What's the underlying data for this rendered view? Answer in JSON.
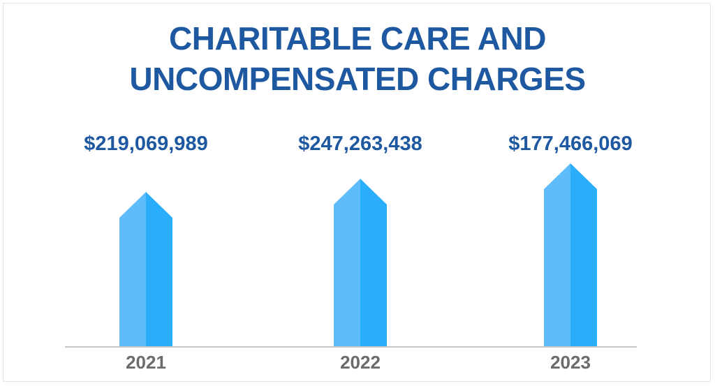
{
  "chart_data": {
    "type": "bar",
    "title_lines": [
      "CHARITABLE CARE AND",
      "UNCOMPENSATED CHARGES"
    ],
    "categories": [
      "2021",
      "2022",
      "2023"
    ],
    "value_labels": [
      "$219,069,989",
      "$247,263,438",
      "$177,466,069"
    ],
    "values": [
      219069989,
      247263438,
      177466069
    ],
    "xlabel": "",
    "ylabel": "",
    "grid": false,
    "legend": "none",
    "colors": {
      "bar_light": "#5ebcfb",
      "bar_dark": "#2aaefb",
      "title": "#1e58a0",
      "value_label": "#1e58a0",
      "tick_label": "#6b6b6b",
      "axis": "#c8c8c8"
    }
  }
}
